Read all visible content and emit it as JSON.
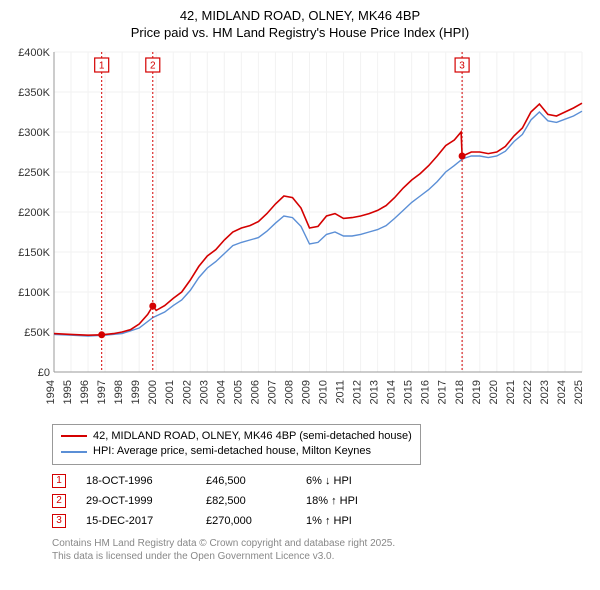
{
  "title_line1": "42, MIDLAND ROAD, OLNEY, MK46 4BP",
  "title_line2": "Price paid vs. HM Land Registry's House Price Index (HPI)",
  "chart": {
    "type": "line",
    "background_color": "#ffffff",
    "grid_color": "#f2f2f2",
    "axis_color": "#999999",
    "x_start": 1994,
    "x_end": 2025,
    "y_start": 0,
    "y_end": 400000,
    "y_ticks": [
      0,
      50000,
      100000,
      150000,
      200000,
      250000,
      300000,
      350000,
      400000
    ],
    "y_tick_labels": [
      "£0",
      "£50K",
      "£100K",
      "£150K",
      "£200K",
      "£250K",
      "£300K",
      "£350K",
      "£400K"
    ],
    "x_ticks": [
      1994,
      1995,
      1996,
      1997,
      1998,
      1999,
      2000,
      2001,
      2002,
      2003,
      2004,
      2005,
      2006,
      2007,
      2008,
      2009,
      2010,
      2011,
      2012,
      2013,
      2014,
      2015,
      2016,
      2017,
      2018,
      2019,
      2020,
      2021,
      2022,
      2023,
      2024,
      2025
    ],
    "series": [
      {
        "name": "property",
        "color": "#d40000",
        "width": 1.6,
        "data": [
          [
            1994.0,
            48000
          ],
          [
            1995.0,
            47000
          ],
          [
            1996.0,
            46000
          ],
          [
            1996.8,
            46500
          ],
          [
            1997.5,
            48000
          ],
          [
            1998.0,
            50000
          ],
          [
            1998.5,
            53000
          ],
          [
            1999.0,
            60000
          ],
          [
            1999.5,
            72000
          ],
          [
            1999.8,
            82500
          ],
          [
            2000.0,
            77000
          ],
          [
            2000.5,
            83000
          ],
          [
            2001.0,
            92000
          ],
          [
            2001.5,
            100000
          ],
          [
            2002.0,
            115000
          ],
          [
            2002.5,
            132000
          ],
          [
            2003.0,
            145000
          ],
          [
            2003.5,
            153000
          ],
          [
            2004.0,
            165000
          ],
          [
            2004.5,
            175000
          ],
          [
            2005.0,
            180000
          ],
          [
            2005.5,
            183000
          ],
          [
            2006.0,
            188000
          ],
          [
            2006.5,
            198000
          ],
          [
            2007.0,
            210000
          ],
          [
            2007.5,
            220000
          ],
          [
            2008.0,
            218000
          ],
          [
            2008.5,
            205000
          ],
          [
            2009.0,
            180000
          ],
          [
            2009.5,
            182000
          ],
          [
            2010.0,
            195000
          ],
          [
            2010.5,
            198000
          ],
          [
            2011.0,
            192000
          ],
          [
            2011.5,
            193000
          ],
          [
            2012.0,
            195000
          ],
          [
            2012.5,
            198000
          ],
          [
            2013.0,
            202000
          ],
          [
            2013.5,
            208000
          ],
          [
            2014.0,
            218000
          ],
          [
            2014.5,
            230000
          ],
          [
            2015.0,
            240000
          ],
          [
            2015.5,
            248000
          ],
          [
            2016.0,
            258000
          ],
          [
            2016.5,
            270000
          ],
          [
            2017.0,
            283000
          ],
          [
            2017.5,
            290000
          ],
          [
            2017.9,
            300000
          ],
          [
            2017.96,
            270000
          ],
          [
            2018.2,
            272000
          ],
          [
            2018.5,
            275000
          ],
          [
            2019.0,
            275000
          ],
          [
            2019.5,
            273000
          ],
          [
            2020.0,
            275000
          ],
          [
            2020.5,
            282000
          ],
          [
            2021.0,
            295000
          ],
          [
            2021.5,
            305000
          ],
          [
            2022.0,
            325000
          ],
          [
            2022.5,
            335000
          ],
          [
            2023.0,
            322000
          ],
          [
            2023.5,
            320000
          ],
          [
            2024.0,
            325000
          ],
          [
            2024.5,
            330000
          ],
          [
            2025.0,
            336000
          ]
        ]
      },
      {
        "name": "hpi",
        "color": "#5b8fd6",
        "width": 1.4,
        "data": [
          [
            1994.0,
            47000
          ],
          [
            1995.0,
            46000
          ],
          [
            1996.0,
            45000
          ],
          [
            1997.0,
            46000
          ],
          [
            1998.0,
            48000
          ],
          [
            1999.0,
            55000
          ],
          [
            1999.8,
            68000
          ],
          [
            2000.0,
            70000
          ],
          [
            2000.5,
            75000
          ],
          [
            2001.0,
            83000
          ],
          [
            2001.5,
            90000
          ],
          [
            2002.0,
            102000
          ],
          [
            2002.5,
            118000
          ],
          [
            2003.0,
            130000
          ],
          [
            2003.5,
            138000
          ],
          [
            2004.0,
            148000
          ],
          [
            2004.5,
            158000
          ],
          [
            2005.0,
            162000
          ],
          [
            2005.5,
            165000
          ],
          [
            2006.0,
            168000
          ],
          [
            2006.5,
            176000
          ],
          [
            2007.0,
            186000
          ],
          [
            2007.5,
            195000
          ],
          [
            2008.0,
            193000
          ],
          [
            2008.5,
            182000
          ],
          [
            2009.0,
            160000
          ],
          [
            2009.5,
            162000
          ],
          [
            2010.0,
            172000
          ],
          [
            2010.5,
            175000
          ],
          [
            2011.0,
            170000
          ],
          [
            2011.5,
            170000
          ],
          [
            2012.0,
            172000
          ],
          [
            2012.5,
            175000
          ],
          [
            2013.0,
            178000
          ],
          [
            2013.5,
            183000
          ],
          [
            2014.0,
            192000
          ],
          [
            2014.5,
            202000
          ],
          [
            2015.0,
            212000
          ],
          [
            2015.5,
            220000
          ],
          [
            2016.0,
            228000
          ],
          [
            2016.5,
            238000
          ],
          [
            2017.0,
            250000
          ],
          [
            2017.5,
            258000
          ],
          [
            2017.96,
            266000
          ],
          [
            2018.2,
            268000
          ],
          [
            2018.5,
            270000
          ],
          [
            2019.0,
            270000
          ],
          [
            2019.5,
            268000
          ],
          [
            2020.0,
            270000
          ],
          [
            2020.5,
            276000
          ],
          [
            2021.0,
            288000
          ],
          [
            2021.5,
            297000
          ],
          [
            2022.0,
            315000
          ],
          [
            2022.5,
            325000
          ],
          [
            2023.0,
            314000
          ],
          [
            2023.5,
            312000
          ],
          [
            2024.0,
            316000
          ],
          [
            2024.5,
            320000
          ],
          [
            2025.0,
            326000
          ]
        ]
      }
    ],
    "markers": [
      {
        "n": "1",
        "x": 1996.8,
        "y": 46500,
        "color": "#d40000"
      },
      {
        "n": "2",
        "x": 1999.8,
        "y": 82500,
        "color": "#d40000"
      },
      {
        "n": "3",
        "x": 2017.96,
        "y": 270000,
        "color": "#d40000"
      }
    ],
    "datapoints_color": "#d40000"
  },
  "legend": {
    "items": [
      {
        "label": "42, MIDLAND ROAD, OLNEY, MK46 4BP (semi-detached house)",
        "color": "#d40000"
      },
      {
        "label": "HPI: Average price, semi-detached house, Milton Keynes",
        "color": "#5b8fd6"
      }
    ]
  },
  "records": [
    {
      "n": "1",
      "color": "#d40000",
      "date": "18-OCT-1996",
      "price": "£46,500",
      "change": "6% ↓ HPI"
    },
    {
      "n": "2",
      "color": "#d40000",
      "date": "29-OCT-1999",
      "price": "£82,500",
      "change": "18% ↑ HPI"
    },
    {
      "n": "3",
      "color": "#d40000",
      "date": "15-DEC-2017",
      "price": "£270,000",
      "change": "1% ↑ HPI"
    }
  ],
  "footer_line1": "Contains HM Land Registry data © Crown copyright and database right 2025.",
  "footer_line2": "This data is licensed under the Open Government Licence v3.0."
}
